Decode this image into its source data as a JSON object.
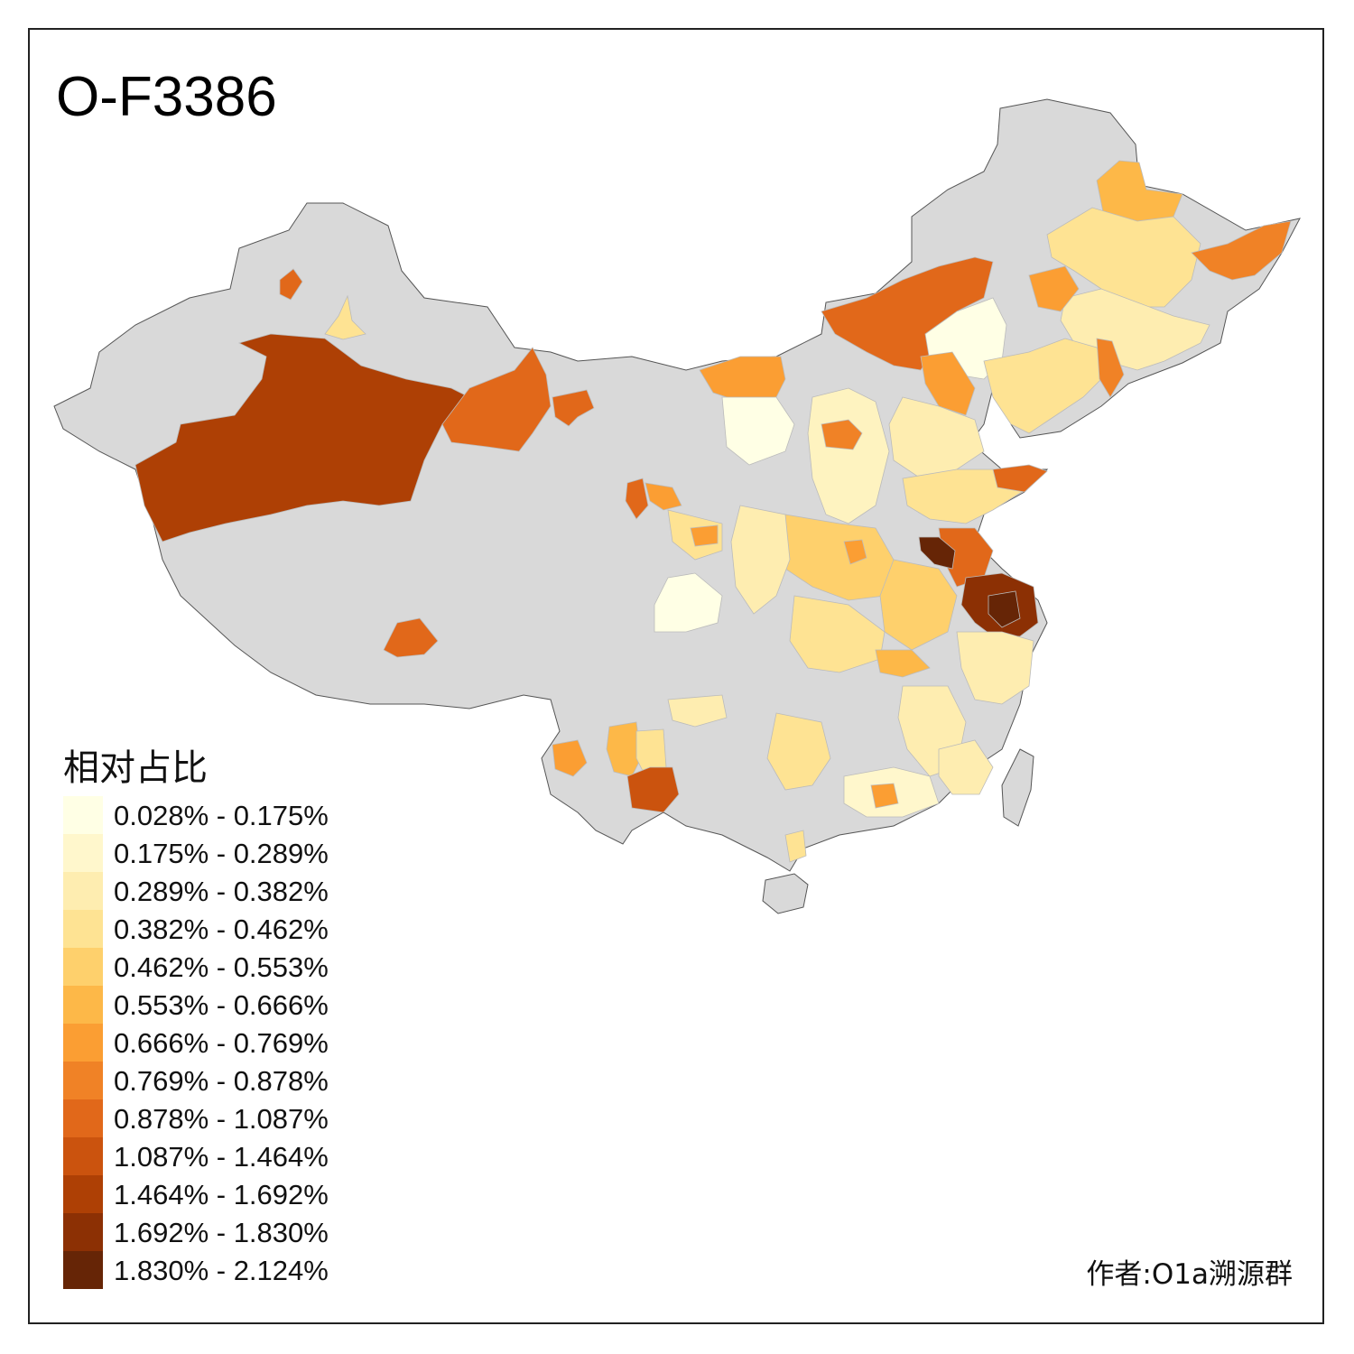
{
  "title": "O-F3386",
  "legend": {
    "title": "相对占比",
    "items": [
      {
        "label": "0.028% - 0.175%",
        "color": "#FFFFE5"
      },
      {
        "label": "0.175% - 0.289%",
        "color": "#FFF7CC"
      },
      {
        "label": "0.289% - 0.382%",
        "color": "#FEEDB0"
      },
      {
        "label": "0.382% - 0.462%",
        "color": "#FEE393"
      },
      {
        "label": "0.462% - 0.553%",
        "color": "#FED06C"
      },
      {
        "label": "0.553% - 0.666%",
        "color": "#FDB848"
      },
      {
        "label": "0.666% - 0.769%",
        "color": "#FB9E33"
      },
      {
        "label": "0.769% - 0.878%",
        "color": "#F08226"
      },
      {
        "label": "0.878% - 1.087%",
        "color": "#E1681A"
      },
      {
        "label": "1.087% - 1.464%",
        "color": "#CB530E"
      },
      {
        "label": "1.464% - 1.692%",
        "color": "#AE4005"
      },
      {
        "label": "1.692% - 1.830%",
        "color": "#8C3004"
      },
      {
        "label": "1.830% - 2.124%",
        "color": "#662506"
      }
    ]
  },
  "author": "作者:O1a溯源群",
  "map_colors": {
    "no_data": "#D9D9D9",
    "border": "#555555"
  },
  "chart_data": {
    "type": "choropleth",
    "title": "O-F3386",
    "legend_title": "相对占比",
    "bins": [
      "0.028% - 0.175%",
      "0.175% - 0.289%",
      "0.289% - 0.382%",
      "0.382% - 0.462%",
      "0.462% - 0.553%",
      "0.553% - 0.666%",
      "0.666% - 0.769%",
      "0.769% - 0.878%",
      "0.878% - 1.087%",
      "1.087% - 1.464%",
      "1.464% - 1.692%",
      "1.692% - 1.830%",
      "1.830% - 2.124%"
    ]
  }
}
